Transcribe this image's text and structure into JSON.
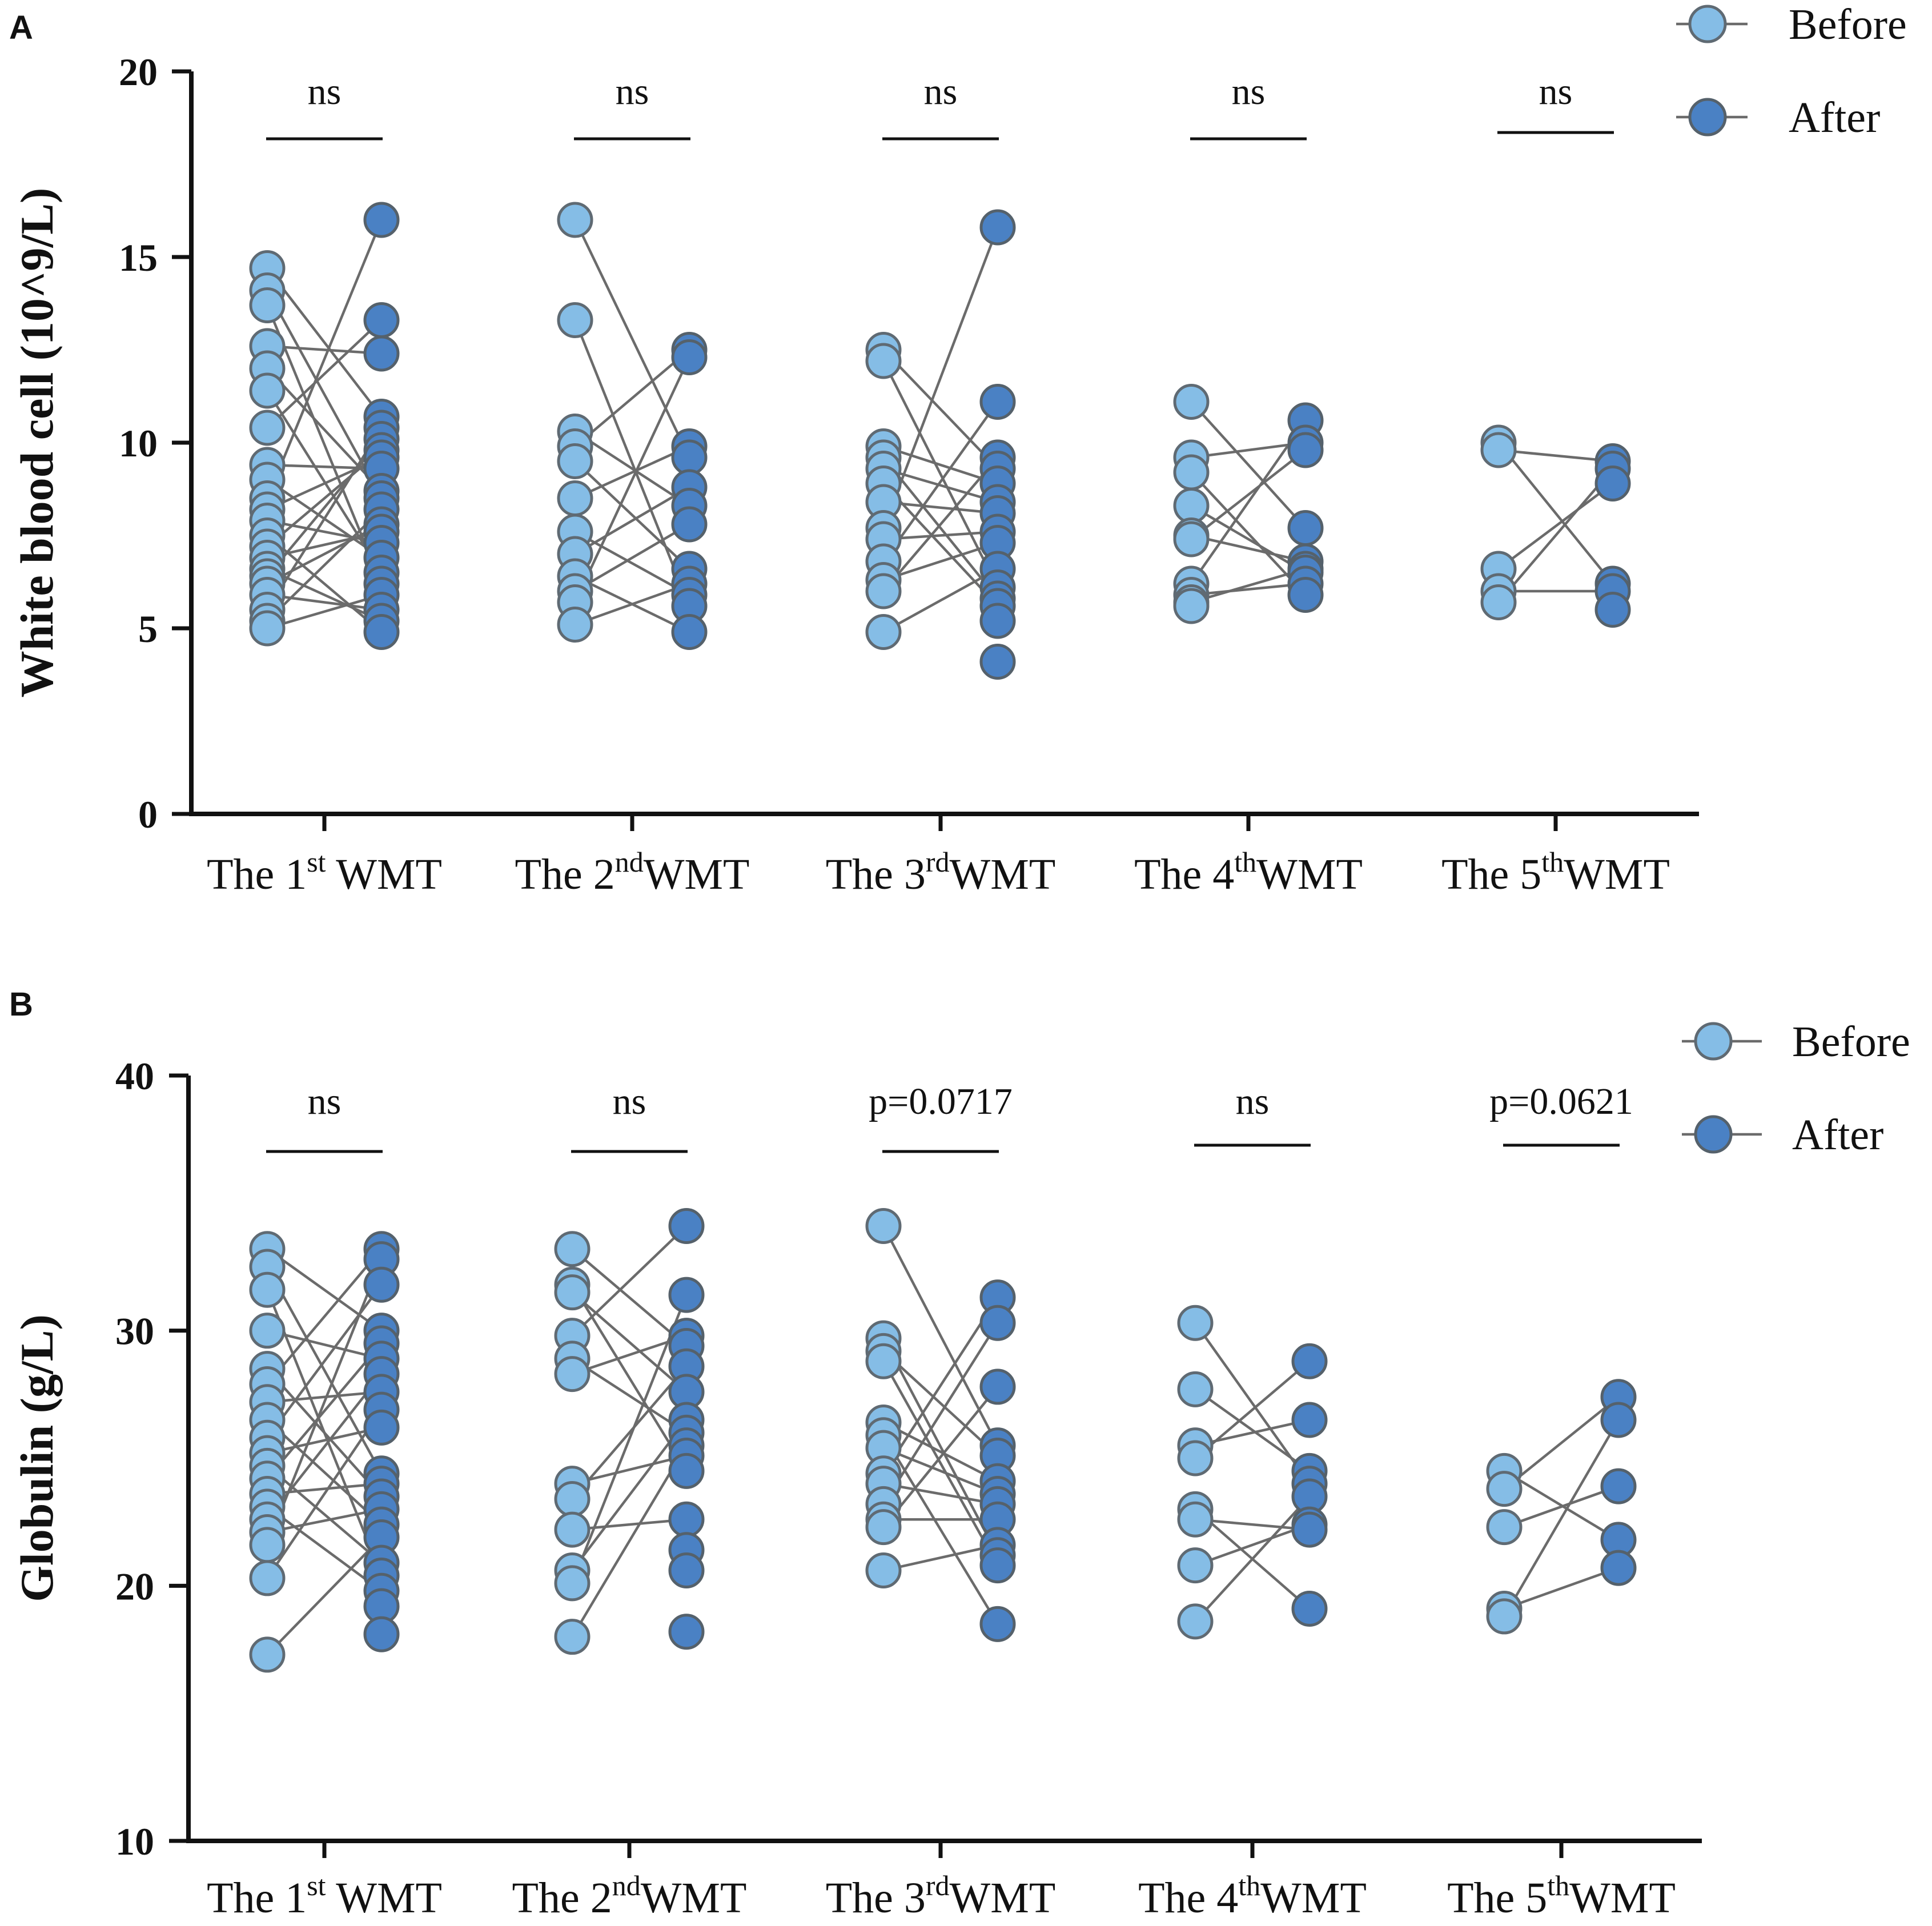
{
  "chart_data": [
    {
      "panel": "A",
      "type": "scatter",
      "subtype": "paired before-after dot plot",
      "ylabel": "White blood cell (10^9/L)",
      "ylim": [
        0,
        20
      ],
      "yticks": [
        0,
        5,
        10,
        15,
        20
      ],
      "yticks_labels": [
        "0",
        "5",
        "10",
        "15",
        "20"
      ],
      "legend": {
        "before": "Before",
        "after": "After",
        "position": "top-right"
      },
      "colors": {
        "before": "#85bde6",
        "after": "#4a81c4",
        "line": "#6b6b6b"
      },
      "groups": [
        {
          "prefix": "The 1",
          "sup": "st",
          "suffix": " WMT",
          "sig": "ns",
          "before": [
            14.7,
            14.1,
            13.7,
            12.6,
            12.0,
            11.4,
            10.4,
            9.4,
            9.0,
            8.5,
            8.2,
            7.9,
            7.5,
            7.2,
            6.9,
            6.6,
            6.4,
            6.2,
            5.9,
            5.5,
            5.2,
            5.0
          ],
          "after": [
            16.0,
            13.3,
            12.4,
            10.7,
            10.4,
            10.1,
            9.8,
            9.6,
            9.3,
            8.7,
            8.5,
            8.2,
            7.8,
            7.6,
            7.3,
            6.9,
            6.5,
            6.2,
            5.9,
            5.5,
            5.2,
            4.9
          ]
        },
        {
          "prefix": "The 2",
          "sup": "nd",
          "suffix": "WMT",
          "sig": "ns",
          "before": [
            16.0,
            13.3,
            10.3,
            9.9,
            9.5,
            8.5,
            7.6,
            7.0,
            6.4,
            6.0,
            5.7,
            5.1
          ],
          "after": [
            12.5,
            12.3,
            9.9,
            9.6,
            8.8,
            8.3,
            7.8,
            6.6,
            6.2,
            5.9,
            5.6,
            4.9
          ]
        },
        {
          "prefix": "The 3",
          "sup": "rd",
          "suffix": "WMT",
          "sig": "ns",
          "before": [
            12.5,
            12.2,
            9.9,
            9.6,
            9.3,
            8.9,
            8.4,
            7.7,
            7.4,
            6.8,
            6.3,
            6.0,
            4.9
          ],
          "after": [
            15.8,
            11.1,
            9.6,
            9.3,
            8.9,
            8.4,
            8.1,
            7.6,
            7.3,
            6.6,
            6.1,
            5.8,
            5.6,
            5.2,
            4.1
          ]
        },
        {
          "prefix": "The 4",
          "sup": "th",
          "suffix": "WMT",
          "sig": "ns",
          "before": [
            11.1,
            9.6,
            9.2,
            8.3,
            7.5,
            7.4,
            6.2,
            5.9,
            5.7,
            5.6
          ],
          "after": [
            10.6,
            10.0,
            9.8,
            7.7,
            6.8,
            6.6,
            6.5,
            6.2,
            5.9
          ]
        },
        {
          "prefix": "The 5",
          "sup": "th",
          "suffix": "WMT",
          "sig": "ns",
          "before": [
            10.0,
            9.8,
            6.6,
            6.0,
            5.7
          ],
          "after": [
            9.5,
            9.3,
            8.9,
            6.2,
            6.0,
            5.5
          ]
        }
      ]
    },
    {
      "panel": "B",
      "type": "scatter",
      "subtype": "paired before-after dot plot",
      "ylabel": "Globulin (g/L)",
      "ylim": [
        10,
        40
      ],
      "yticks": [
        10,
        20,
        30,
        40
      ],
      "yticks_labels": [
        "10",
        "20",
        "30",
        "40"
      ],
      "legend": {
        "before": "Before",
        "after": "After",
        "position": "top-right"
      },
      "colors": {
        "before": "#85bde6",
        "after": "#4a81c4",
        "line": "#6b6b6b"
      },
      "groups": [
        {
          "prefix": "The 1",
          "sup": "st",
          "suffix": " WMT",
          "sig": "ns",
          "before": [
            33.2,
            32.5,
            31.6,
            30.0,
            28.5,
            27.9,
            27.2,
            26.5,
            25.8,
            25.2,
            24.7,
            24.2,
            23.6,
            23.1,
            22.6,
            22.1,
            21.6,
            20.3,
            17.3
          ],
          "after": [
            33.2,
            32.8,
            31.8,
            30.0,
            29.5,
            28.9,
            28.3,
            27.6,
            26.9,
            26.2,
            24.4,
            24.0,
            23.5,
            23.0,
            22.4,
            21.9,
            20.9,
            20.4,
            19.8,
            19.2,
            18.1
          ]
        },
        {
          "prefix": "The 2",
          "sup": "nd",
          "suffix": "WMT",
          "sig": "ns",
          "before": [
            33.2,
            31.8,
            31.5,
            29.8,
            28.9,
            28.3,
            24.0,
            23.4,
            22.2,
            20.6,
            20.1,
            18.0
          ],
          "after": [
            34.1,
            31.4,
            29.8,
            29.4,
            28.6,
            27.6,
            26.5,
            26.0,
            25.5,
            25.1,
            24.5,
            22.6,
            21.4,
            20.6,
            18.2
          ]
        },
        {
          "prefix": "The 3",
          "sup": "rd",
          "suffix": "WMT",
          "sig": "p=0.0717",
          "before": [
            34.1,
            29.7,
            29.2,
            28.8,
            26.4,
            25.9,
            25.4,
            24.4,
            24.0,
            23.2,
            22.6,
            22.3,
            20.6
          ],
          "after": [
            31.3,
            30.3,
            27.8,
            25.5,
            25.1,
            24.1,
            23.6,
            23.2,
            22.6,
            21.6,
            21.2,
            20.8,
            18.5
          ]
        },
        {
          "prefix": "The 4",
          "sup": "th",
          "suffix": "WMT",
          "sig": "ns",
          "before": [
            30.3,
            27.7,
            25.5,
            25.0,
            23.0,
            22.6,
            20.8,
            18.6
          ],
          "after": [
            28.8,
            26.5,
            24.5,
            24.0,
            23.5,
            22.4,
            22.2,
            19.1
          ]
        },
        {
          "prefix": "The 5",
          "sup": "th",
          "suffix": "WMT",
          "sig": "p=0.0621",
          "before": [
            24.5,
            23.8,
            22.3,
            19.1,
            18.8
          ],
          "after": [
            27.4,
            26.5,
            23.9,
            21.8,
            20.7
          ]
        }
      ]
    }
  ]
}
